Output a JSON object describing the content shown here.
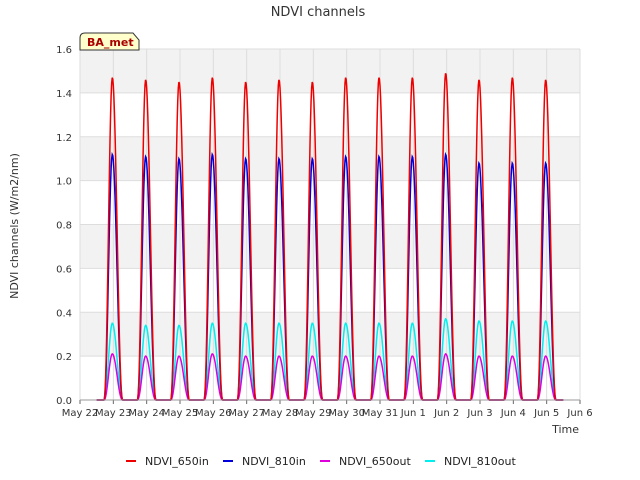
{
  "chart_data": {
    "type": "line",
    "title": "NDVI channels",
    "xlabel": "Time",
    "ylabel": "NDVI channels (W/m2/nm)",
    "badge": "BA_met",
    "ylim": [
      0.0,
      1.6
    ],
    "y_ticks": [
      0.0,
      0.2,
      0.4,
      0.6,
      0.8,
      1.0,
      1.2,
      1.4,
      1.6
    ],
    "x_range_days": [
      0,
      15
    ],
    "x_ticks": [
      "May 22",
      "May 23",
      "May 24",
      "May 25",
      "May 26",
      "May 27",
      "May 28",
      "May 29",
      "May 30",
      "May 31",
      "Jun 1",
      "Jun 2",
      "Jun 3",
      "Jun 4",
      "Jun 5",
      "Jun 6"
    ],
    "background_bands": true,
    "grid": true,
    "legend_position": "bottom",
    "series": [
      {
        "name": "NDVI_650in",
        "color": "#ee0000",
        "daily_peaks": [
          1.47,
          1.46,
          1.45,
          1.47,
          1.45,
          1.46,
          1.45,
          1.47,
          1.47,
          1.47,
          1.49,
          1.46,
          1.47,
          1.46
        ]
      },
      {
        "name": "NDVI_810in",
        "color": "#0000dd",
        "daily_peaks": [
          1.12,
          1.11,
          1.1,
          1.12,
          1.1,
          1.1,
          1.1,
          1.11,
          1.11,
          1.11,
          1.12,
          1.08,
          1.08,
          1.08
        ]
      },
      {
        "name": "NDVI_650out",
        "color": "#dd00dd",
        "daily_peaks": [
          0.21,
          0.2,
          0.2,
          0.21,
          0.2,
          0.2,
          0.2,
          0.2,
          0.2,
          0.2,
          0.21,
          0.2,
          0.2,
          0.2
        ]
      },
      {
        "name": "NDVI_810out",
        "color": "#00eeee",
        "daily_peaks": [
          0.35,
          0.34,
          0.34,
          0.35,
          0.35,
          0.35,
          0.35,
          0.35,
          0.35,
          0.35,
          0.37,
          0.36,
          0.36,
          0.36
        ]
      }
    ],
    "day_profile": {
      "sunrise_frac": 0.22,
      "sunset_frac": 0.78,
      "peak_frac": 0.47
    }
  }
}
